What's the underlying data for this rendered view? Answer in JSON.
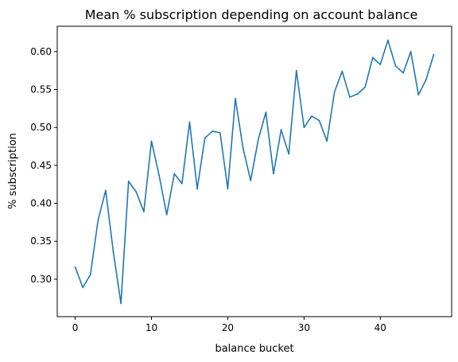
{
  "chart_data": {
    "type": "line",
    "title": "Mean % subscription depending on account balance",
    "xlabel": "balance bucket",
    "ylabel": "% subscription",
    "xlim": [
      -2.35,
      49.35
    ],
    "ylim": [
      0.2506,
      0.6334
    ],
    "xticks": [
      0,
      10,
      20,
      30,
      40
    ],
    "xtick_labels": [
      "0",
      "10",
      "20",
      "30",
      "40"
    ],
    "yticks": [
      0.3,
      0.35,
      0.4,
      0.45,
      0.5,
      0.55,
      0.6
    ],
    "ytick_labels": [
      "0.30",
      "0.35",
      "0.40",
      "0.45",
      "0.50",
      "0.55",
      "0.60"
    ],
    "grid": false,
    "legend": "none",
    "series": [
      {
        "color": "#1f77b4",
        "x": [
          0,
          1,
          2,
          3,
          4,
          5,
          6,
          7,
          8,
          9,
          10,
          11,
          12,
          13,
          14,
          15,
          16,
          17,
          18,
          19,
          20,
          21,
          22,
          23,
          24,
          25,
          26,
          27,
          28,
          29,
          30,
          31,
          32,
          33,
          34,
          35,
          36,
          37,
          38,
          39,
          40,
          41,
          42,
          43,
          44,
          45,
          46,
          47
        ],
        "values": [
          0.316,
          0.289,
          0.306,
          0.378,
          0.417,
          0.336,
          0.268,
          0.429,
          0.415,
          0.389,
          0.482,
          0.437,
          0.385,
          0.439,
          0.426,
          0.507,
          0.419,
          0.486,
          0.495,
          0.493,
          0.419,
          0.538,
          0.473,
          0.43,
          0.484,
          0.52,
          0.439,
          0.497,
          0.465,
          0.575,
          0.5,
          0.515,
          0.509,
          0.482,
          0.547,
          0.574,
          0.54,
          0.544,
          0.553,
          0.592,
          0.583,
          0.615,
          0.581,
          0.572,
          0.6,
          0.543,
          0.563,
          0.596
        ]
      }
    ]
  }
}
